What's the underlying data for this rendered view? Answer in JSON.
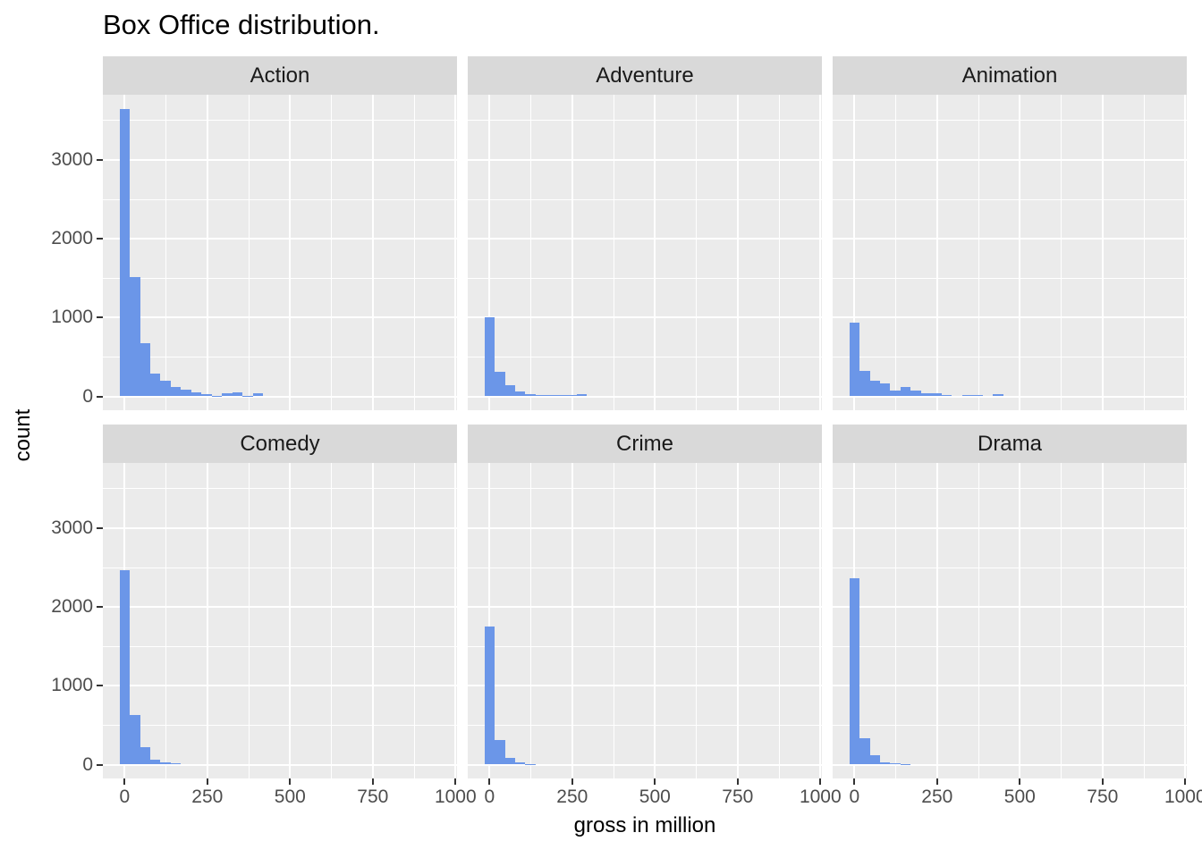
{
  "title": "Box Office distribution.",
  "x_axis": {
    "label": "gross in million",
    "ticks": [
      "0",
      "250",
      "500",
      "750",
      "1000"
    ]
  },
  "y_axis": {
    "label": "count",
    "ticks": [
      "0",
      "1000",
      "2000",
      "3000"
    ]
  },
  "colors": {
    "bar": "#6b96e8",
    "panel_bg": "#ebebeb",
    "strip_bg": "#d9d9d9",
    "grid": "#ffffff",
    "tick_label": "#4d4d4d",
    "tick_mark": "#333333",
    "text": "#000000"
  },
  "chart_data": {
    "type": "bar",
    "variant": "faceted_histogram",
    "title": "Box Office distribution.",
    "xlabel": "gross in million",
    "ylabel": "count",
    "facet_layout": {
      "rows": 2,
      "cols": 3
    },
    "x_ticks": [
      0,
      250,
      500,
      750,
      1000
    ],
    "y_ticks": [
      0,
      1000,
      2000,
      3000
    ],
    "x_minor": [
      125,
      375,
      625,
      875
    ],
    "y_minor": [
      500,
      1500,
      2500,
      3500
    ],
    "xlim": [
      -65,
      1003
    ],
    "ylim": [
      -170,
      3830
    ],
    "grid": "on",
    "legend": "none",
    "bin_start": -15.5,
    "binwidth": 31,
    "facets": [
      {
        "name": "Action",
        "counts": [
          3650,
          1510,
          670,
          290,
          200,
          118,
          86,
          46,
          30,
          10,
          45,
          52,
          10,
          45
        ]
      },
      {
        "name": "Adventure",
        "counts": [
          1000,
          310,
          140,
          60,
          32,
          20,
          20,
          13,
          13,
          28
        ]
      },
      {
        "name": "Animation",
        "counts": [
          935,
          320,
          195,
          165,
          75,
          120,
          75,
          45,
          35,
          15,
          0,
          18,
          18,
          0,
          25
        ]
      },
      {
        "name": "Comedy",
        "counts": [
          2470,
          630,
          225,
          60,
          30,
          12
        ]
      },
      {
        "name": "Crime",
        "counts": [
          1750,
          310,
          90,
          25,
          10
        ]
      },
      {
        "name": "Drama",
        "counts": [
          2360,
          340,
          115,
          30,
          12,
          5
        ]
      }
    ]
  }
}
